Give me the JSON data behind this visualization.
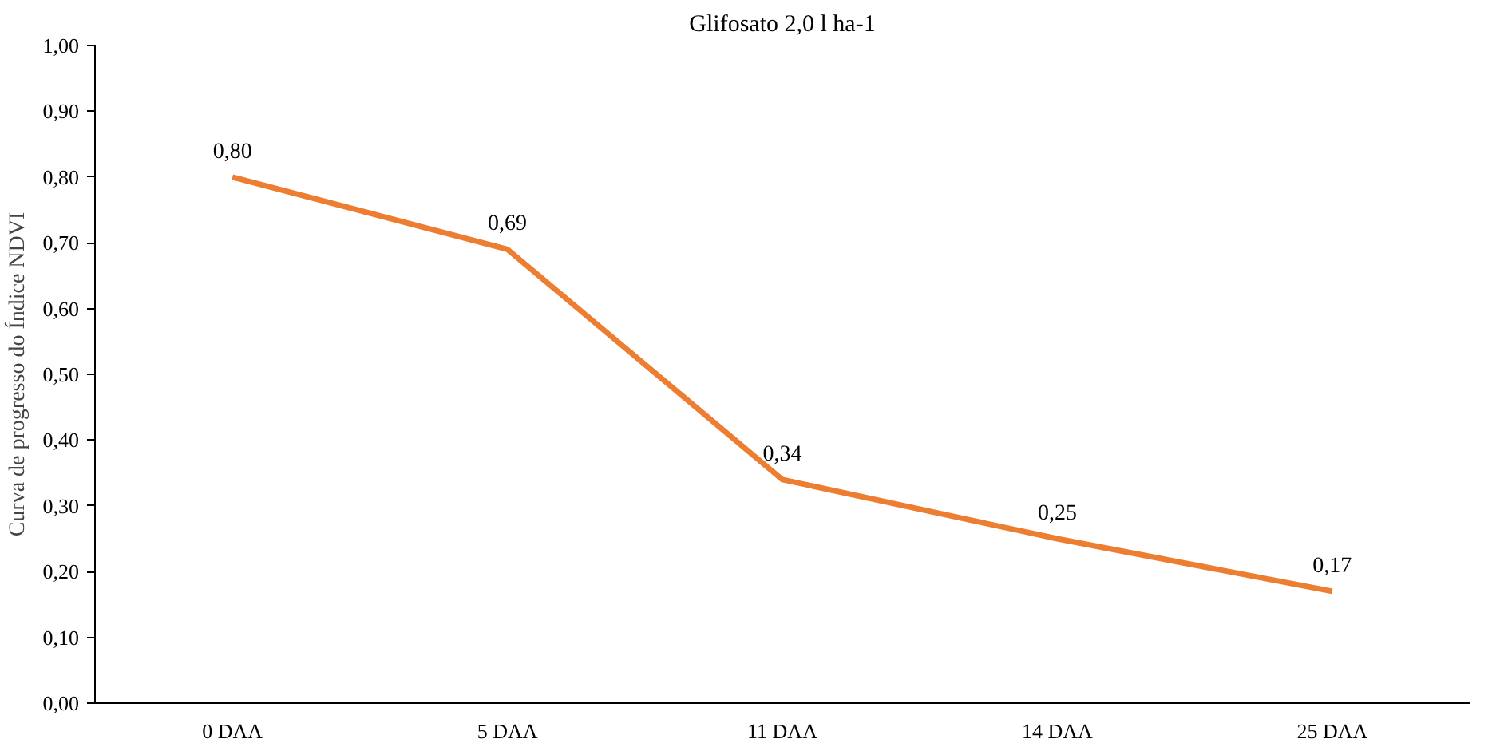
{
  "chart_data": {
    "type": "line",
    "title": "Glifosato 2,0 l ha-1",
    "ylabel": "Curva de progresso do Índice NDVI",
    "categories": [
      "0 DAA",
      "5 DAA",
      "11 DAA",
      "14 DAA",
      "25 DAA"
    ],
    "series": [
      {
        "color": "#ed7d31",
        "values": [
          0.8,
          0.69,
          0.34,
          0.25,
          0.17
        ],
        "value_labels": [
          "0,80",
          "0,69",
          "0,34",
          "0,25",
          "0,17"
        ]
      }
    ],
    "ylim": [
      0,
      1
    ],
    "yticks": [
      {
        "value": 0,
        "label": "0,00"
      },
      {
        "value": 0.1,
        "label": "0,10"
      },
      {
        "value": 0.2,
        "label": "0,20"
      },
      {
        "value": 0.3,
        "label": "0,30"
      },
      {
        "value": 0.4,
        "label": "0,40"
      },
      {
        "value": 0.5,
        "label": "0,50"
      },
      {
        "value": 0.6,
        "label": "0,60"
      },
      {
        "value": 0.7,
        "label": "0,70"
      },
      {
        "value": 0.8,
        "label": "0,80"
      },
      {
        "value": 0.9,
        "label": "0,90"
      },
      {
        "value": 1.0,
        "label": "1,00"
      }
    ],
    "grid": false,
    "marker": "none",
    "line_style": "solid"
  }
}
